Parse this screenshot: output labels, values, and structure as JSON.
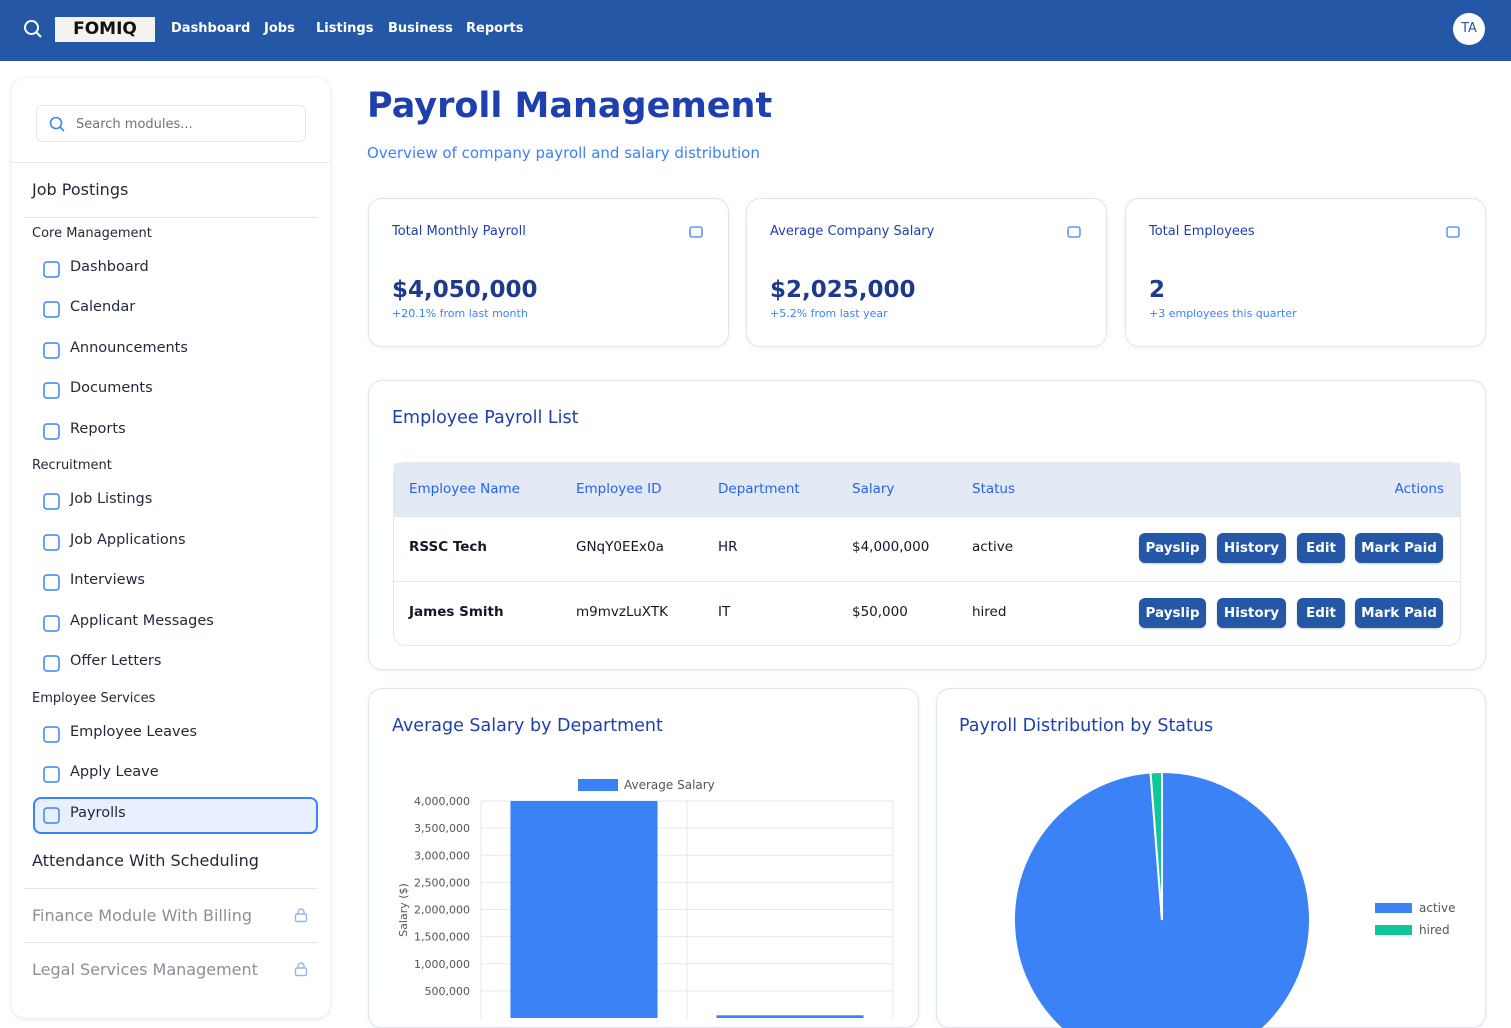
{
  "header": {
    "logo": "FOMIQ",
    "nav": [
      "Dashboard",
      "Jobs",
      "Listings",
      "Business",
      "Reports"
    ],
    "avatar": "TA"
  },
  "sidebar": {
    "search_placeholder": "Search modules...",
    "top_item": "Job Postings",
    "groups": [
      {
        "title": "Core Management",
        "items": [
          "Dashboard",
          "Calendar",
          "Announcements",
          "Documents",
          "Reports"
        ]
      },
      {
        "title": "Recruitment",
        "items": [
          "Job Listings",
          "Job Applications",
          "Interviews",
          "Applicant Messages",
          "Offer Letters"
        ]
      },
      {
        "title": "Employee Services",
        "items": [
          "Employee Leaves",
          "Apply Leave",
          "Payrolls"
        ]
      }
    ],
    "modules": [
      "Attendance With Scheduling"
    ],
    "locked_modules": [
      "Finance Module With Billing",
      "Legal Services Management"
    ]
  },
  "page": {
    "title": "Payroll Management",
    "subtitle": "Overview of company payroll and salary distribution"
  },
  "stats": [
    {
      "label": "Total Monthly Payroll",
      "value": "$4,050,000",
      "note": "+20.1% from last month"
    },
    {
      "label": "Average Company Salary",
      "value": "$2,025,000",
      "note": "+5.2% from last year"
    },
    {
      "label": "Total Employees",
      "value": "2",
      "note": "+3 employees this quarter"
    }
  ],
  "table": {
    "title": "Employee Payroll List",
    "columns": [
      "Employee Name",
      "Employee ID",
      "Department",
      "Salary",
      "Status",
      "Actions"
    ],
    "rows": [
      [
        "RSSC Tech",
        "GNqY0EEx0a",
        "HR",
        "$4,000,000",
        "active"
      ],
      [
        "James Smith",
        "m9mvzLuXTK",
        "IT",
        "$50,000",
        "hired"
      ]
    ],
    "actions": [
      "Payslip",
      "History",
      "Edit",
      "Mark Paid"
    ]
  },
  "chart_data": [
    {
      "type": "bar",
      "title": "Average Salary by Department",
      "categories": [
        null,
        null
      ],
      "series": [
        {
          "name": "Average Salary",
          "color": "#3b82f6",
          "values": [
            4000000,
            50000
          ]
        }
      ],
      "y_label": "Salary ($)",
      "ylim": [
        0,
        4000000
      ],
      "yticks": [
        {
          "value": 500000,
          "label": "500,000"
        },
        {
          "value": 1000000,
          "label": "1,000,000"
        },
        {
          "value": 1500000,
          "label": "1,500,000"
        },
        {
          "value": 2000000,
          "label": "2,000,000"
        },
        {
          "value": 2500000,
          "label": "2,500,000"
        },
        {
          "value": 3000000,
          "label": "3,000,000"
        },
        {
          "value": 3500000,
          "label": "3,500,000"
        },
        {
          "value": 4000000,
          "label": "4,000,000"
        }
      ],
      "grid": true
    },
    {
      "type": "pie",
      "title": "Payroll Distribution by Status",
      "categories": [
        "active",
        "hired"
      ],
      "values": [
        4000000,
        50000
      ],
      "colors": [
        "#3b82f6",
        "#10c79a"
      ],
      "legend": "right"
    }
  ]
}
